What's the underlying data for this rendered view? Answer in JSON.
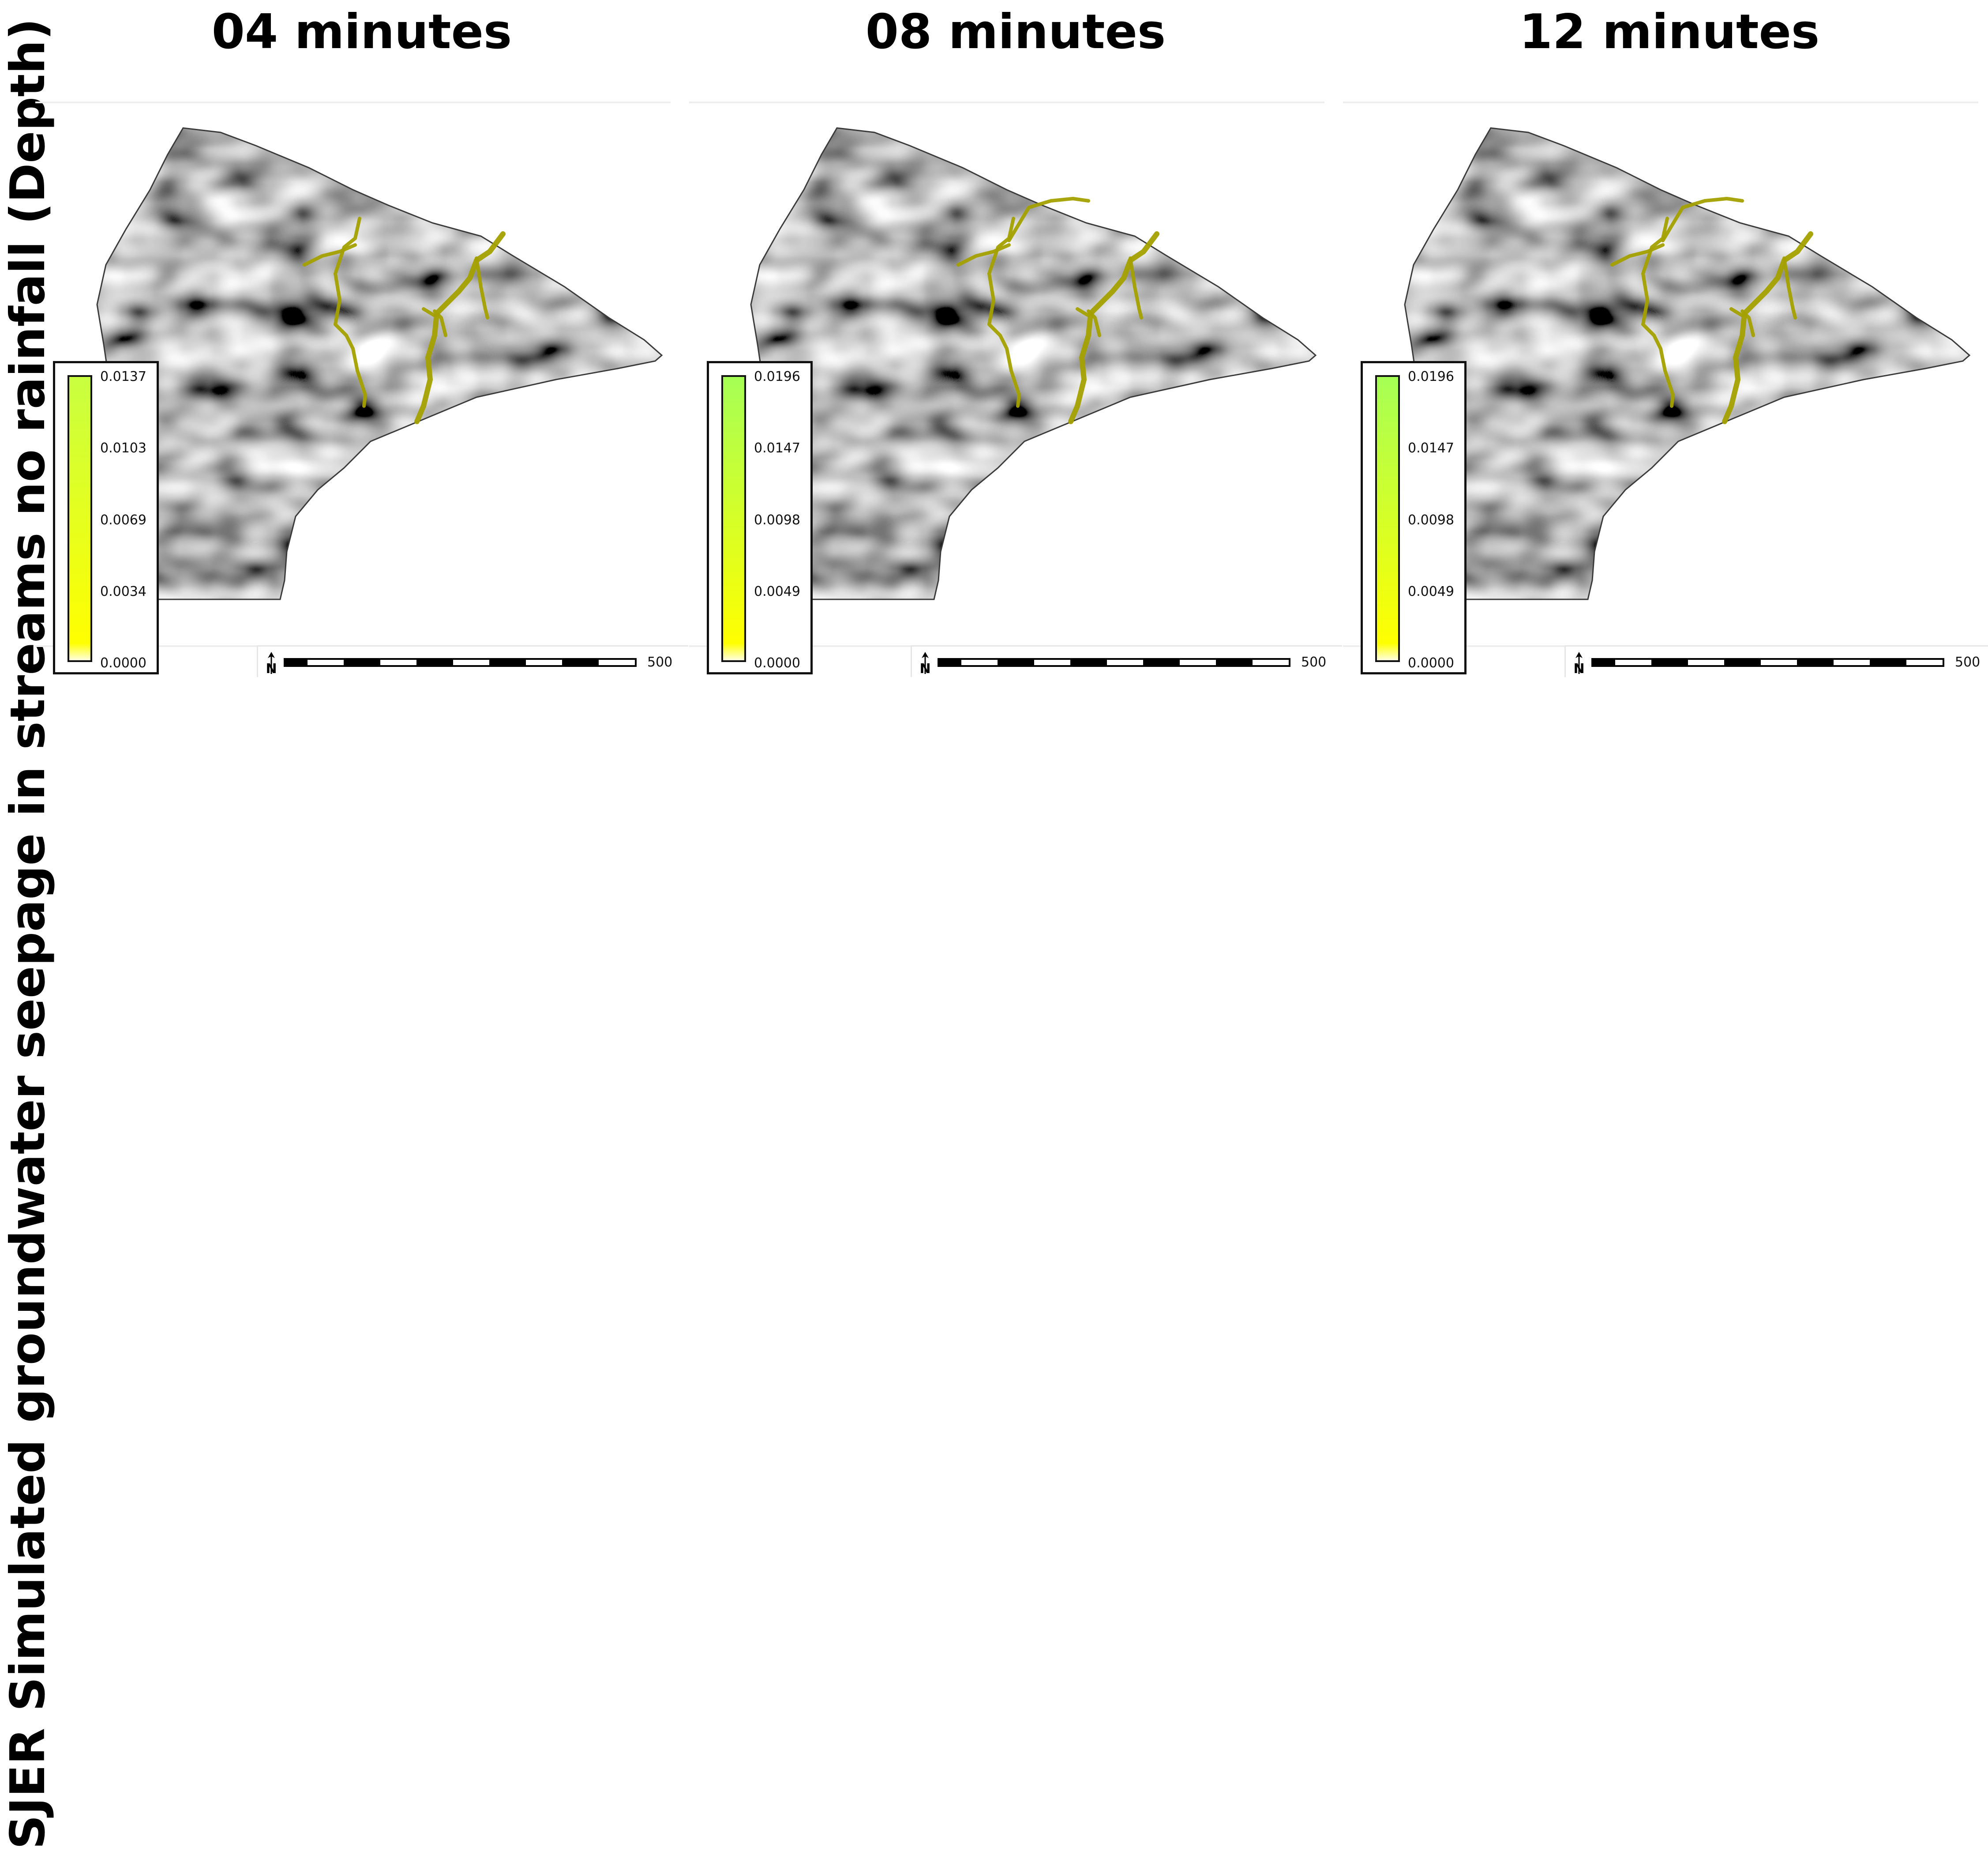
{
  "figure": {
    "side_title": "SJER Simulated groundwater seepage in streams no rainfall (Depth)"
  },
  "colors": {
    "stream": "#a3a000",
    "legend_low": "#ffff00",
    "legend_high_1": "#c8ff40",
    "legend_high_2": "#a6ff55",
    "legend_base": "#ffffe0"
  },
  "panels": [
    {
      "title": "04 minutes",
      "legend_ticks": [
        "0.0137",
        "0.0103",
        "0.0069",
        "0.0034",
        "0.0000"
      ],
      "legend_top_color": "#c8ff40",
      "scale_label": "500",
      "north_label": "N"
    },
    {
      "title": "08 minutes",
      "legend_ticks": [
        "0.0196",
        "0.0147",
        "0.0098",
        "0.0049",
        "0.0000"
      ],
      "legend_top_color": "#a6ff55",
      "scale_label": "500",
      "north_label": "N"
    },
    {
      "title": "12 minutes",
      "legend_ticks": [
        "0.0196",
        "0.0147",
        "0.0098",
        "0.0049",
        "0.0000"
      ],
      "legend_top_color": "#a6ff55",
      "scale_label": "500",
      "north_label": "N"
    }
  ]
}
